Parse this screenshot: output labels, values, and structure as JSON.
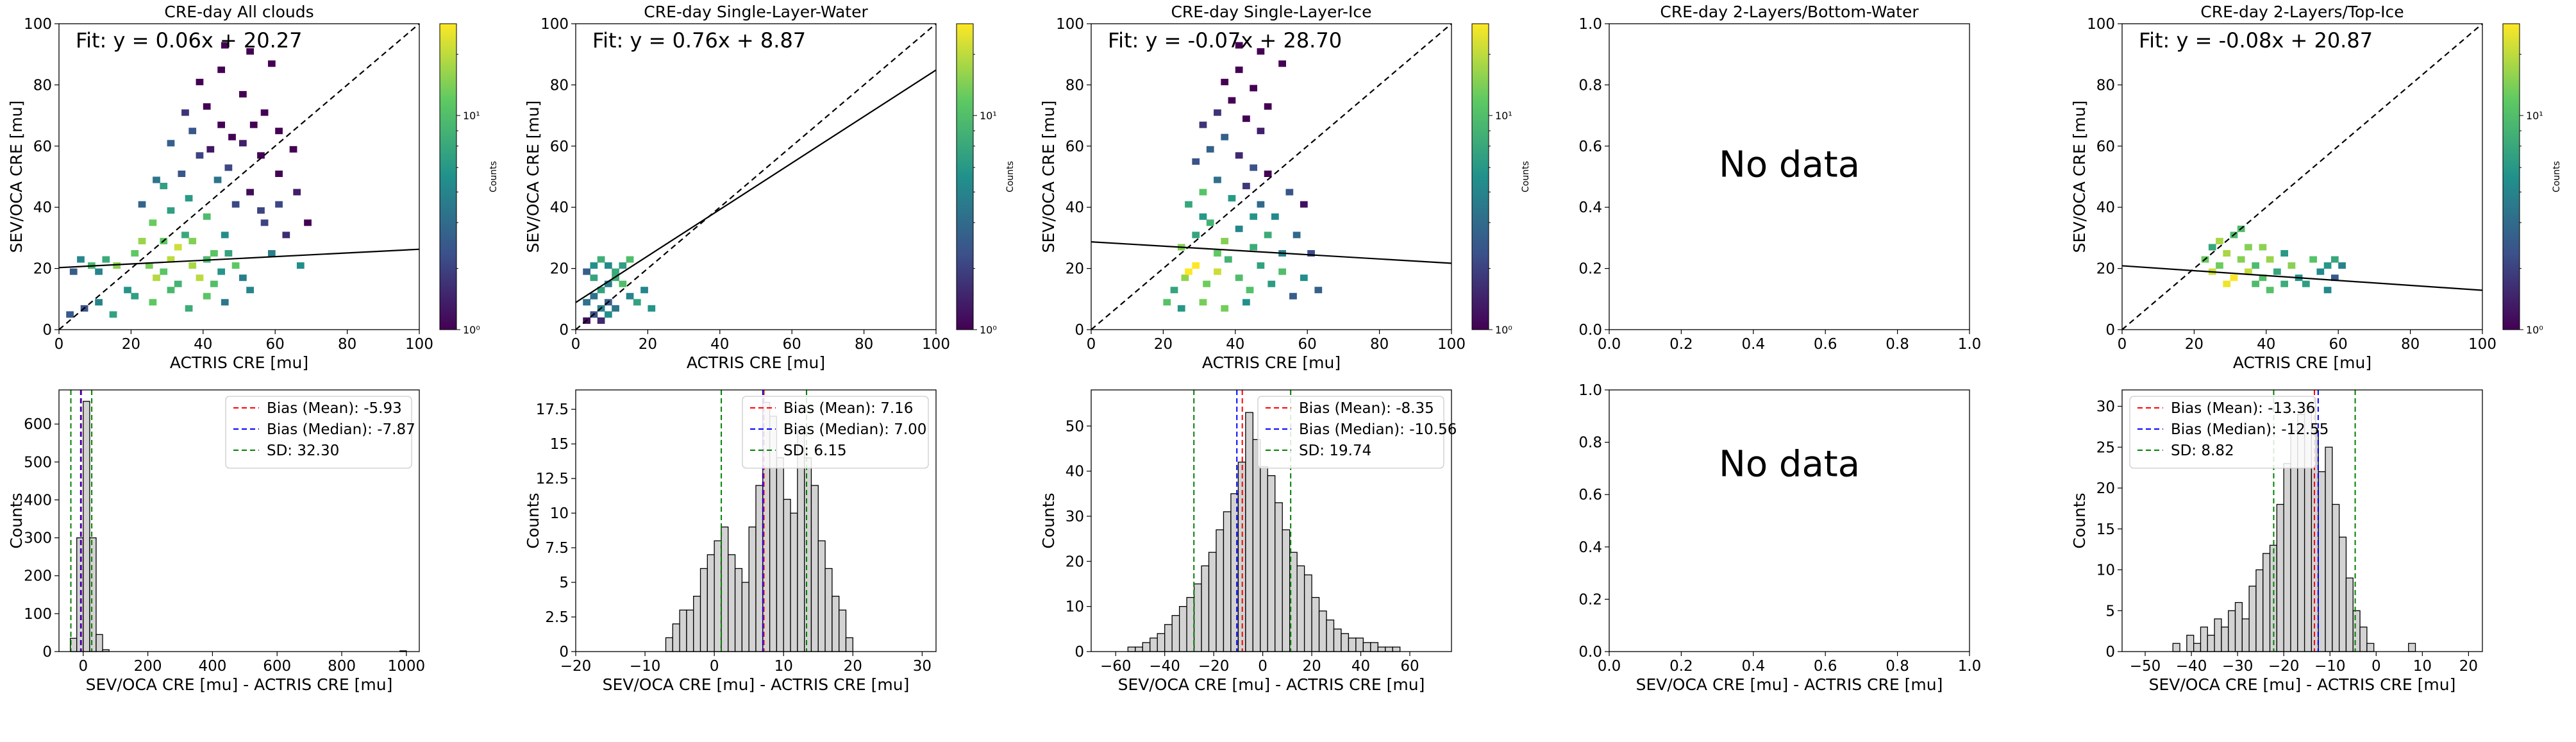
{
  "figure": {
    "no_data_label": "No data",
    "colorbar_label": "Counts",
    "colorbar_ticks": [
      "10⁰",
      "10¹"
    ],
    "colormap": [
      "#440154",
      "#3b528b",
      "#21918c",
      "#5ec962",
      "#fde725"
    ],
    "hist_fill": "#d3d3d3",
    "line_colors": {
      "mean": "#ff0000",
      "median": "#0000ff",
      "sd": "#008000"
    }
  },
  "chart_data": [
    {
      "type": "heatmap",
      "title": "CRE-day All clouds",
      "xlabel": "ACTRIS CRE [mu]",
      "ylabel": "SEV/OCA CRE [mu]",
      "xlim": [
        0,
        100
      ],
      "ylim": [
        0,
        100
      ],
      "xticks": [
        0,
        20,
        40,
        60,
        80,
        100
      ],
      "yticks": [
        0,
        20,
        40,
        60,
        80,
        100
      ],
      "fit_label": "Fit: y = 0.06x + 20.27",
      "fit": {
        "slope": 0.06,
        "intercept": 20.27
      },
      "one_to_one_line": true,
      "colorbar": "log",
      "cells": [
        [
          3,
          18
        ],
        [
          5,
          22
        ],
        [
          8,
          20
        ],
        [
          10,
          18
        ],
        [
          12,
          22
        ],
        [
          15,
          20
        ],
        [
          18,
          12
        ],
        [
          20,
          24
        ],
        [
          22,
          28
        ],
        [
          24,
          20
        ],
        [
          26,
          16
        ],
        [
          28,
          18
        ],
        [
          30,
          22
        ],
        [
          32,
          26
        ],
        [
          34,
          30
        ],
        [
          36,
          20
        ],
        [
          38,
          16
        ],
        [
          40,
          22
        ],
        [
          42,
          14
        ],
        [
          44,
          18
        ],
        [
          46,
          24
        ],
        [
          48,
          20
        ],
        [
          50,
          16
        ],
        [
          52,
          12
        ],
        [
          25,
          34
        ],
        [
          30,
          38
        ],
        [
          35,
          42
        ],
        [
          40,
          36
        ],
        [
          45,
          30
        ],
        [
          28,
          46
        ],
        [
          33,
          50
        ],
        [
          38,
          56
        ],
        [
          43,
          48
        ],
        [
          48,
          40
        ],
        [
          30,
          60
        ],
        [
          36,
          64
        ],
        [
          41,
          58
        ],
        [
          46,
          52
        ],
        [
          52,
          44
        ],
        [
          55,
          38
        ],
        [
          34,
          70
        ],
        [
          40,
          72
        ],
        [
          44,
          66
        ],
        [
          50,
          60
        ],
        [
          55,
          56
        ],
        [
          60,
          50
        ],
        [
          38,
          80
        ],
        [
          44,
          84
        ],
        [
          50,
          76
        ],
        [
          56,
          70
        ],
        [
          60,
          64
        ],
        [
          64,
          58
        ],
        [
          45,
          92
        ],
        [
          52,
          90
        ],
        [
          58,
          86
        ],
        [
          20,
          10
        ],
        [
          25,
          8
        ],
        [
          30,
          12
        ],
        [
          35,
          6
        ],
        [
          40,
          10
        ],
        [
          45,
          8
        ],
        [
          10,
          8
        ],
        [
          14,
          4
        ],
        [
          6,
          6
        ],
        [
          2,
          4
        ],
        [
          22,
          40
        ],
        [
          26,
          48
        ],
        [
          60,
          40
        ],
        [
          62,
          30
        ],
        [
          58,
          24
        ],
        [
          66,
          20
        ],
        [
          56,
          34
        ],
        [
          42,
          24
        ],
        [
          32,
          14
        ],
        [
          28,
          28
        ],
        [
          36,
          28
        ],
        [
          47,
          62
        ],
        [
          53,
          66
        ],
        [
          65,
          44
        ],
        [
          68,
          34
        ]
      ]
    },
    {
      "type": "heatmap",
      "title": "CRE-day Single-Layer-Water",
      "xlabel": "ACTRIS CRE [mu]",
      "ylabel": "SEV/OCA CRE [mu]",
      "xlim": [
        0,
        100
      ],
      "ylim": [
        0,
        100
      ],
      "xticks": [
        0,
        20,
        40,
        60,
        80,
        100
      ],
      "yticks": [
        0,
        20,
        40,
        60,
        80,
        100
      ],
      "fit_label": "Fit: y = 0.76x + 8.87",
      "fit": {
        "slope": 0.76,
        "intercept": 8.87
      },
      "one_to_one_line": true,
      "colorbar": "log",
      "cells": [
        [
          2,
          2
        ],
        [
          4,
          4
        ],
        [
          6,
          6
        ],
        [
          8,
          8
        ],
        [
          4,
          10
        ],
        [
          6,
          12
        ],
        [
          8,
          14
        ],
        [
          10,
          16
        ],
        [
          2,
          18
        ],
        [
          4,
          20
        ],
        [
          6,
          22
        ],
        [
          8,
          20
        ],
        [
          10,
          18
        ],
        [
          12,
          14
        ],
        [
          14,
          10
        ],
        [
          16,
          8
        ],
        [
          18,
          12
        ],
        [
          20,
          6
        ],
        [
          2,
          8
        ],
        [
          6,
          2
        ],
        [
          10,
          6
        ],
        [
          4,
          16
        ],
        [
          12,
          20
        ],
        [
          14,
          22
        ],
        [
          8,
          4
        ]
      ]
    },
    {
      "type": "heatmap",
      "title": "CRE-day Single-Layer-Ice",
      "xlabel": "ACTRIS CRE [mu]",
      "ylabel": "SEV/OCA CRE [mu]",
      "xlim": [
        0,
        100
      ],
      "ylim": [
        0,
        100
      ],
      "xticks": [
        0,
        20,
        40,
        60,
        80,
        100
      ],
      "yticks": [
        0,
        20,
        40,
        60,
        80,
        100
      ],
      "fit_label": "Fit: y = -0.07x + 28.70",
      "fit": {
        "slope": -0.07,
        "intercept": 28.7
      },
      "one_to_one_line": true,
      "colorbar": "log",
      "cells": [
        [
          22,
          12
        ],
        [
          25,
          16
        ],
        [
          28,
          20
        ],
        [
          31,
          14
        ],
        [
          34,
          18
        ],
        [
          37,
          22
        ],
        [
          40,
          16
        ],
        [
          43,
          12
        ],
        [
          46,
          20
        ],
        [
          49,
          14
        ],
        [
          52,
          18
        ],
        [
          55,
          10
        ],
        [
          24,
          26
        ],
        [
          28,
          30
        ],
        [
          32,
          34
        ],
        [
          36,
          28
        ],
        [
          40,
          32
        ],
        [
          44,
          26
        ],
        [
          48,
          30
        ],
        [
          52,
          24
        ],
        [
          26,
          40
        ],
        [
          30,
          44
        ],
        [
          34,
          48
        ],
        [
          38,
          42
        ],
        [
          42,
          46
        ],
        [
          46,
          40
        ],
        [
          50,
          36
        ],
        [
          28,
          54
        ],
        [
          32,
          58
        ],
        [
          36,
          62
        ],
        [
          40,
          56
        ],
        [
          44,
          52
        ],
        [
          48,
          50
        ],
        [
          30,
          66
        ],
        [
          34,
          70
        ],
        [
          38,
          74
        ],
        [
          42,
          68
        ],
        [
          46,
          64
        ],
        [
          36,
          80
        ],
        [
          40,
          84
        ],
        [
          44,
          78
        ],
        [
          48,
          72
        ],
        [
          40,
          92
        ],
        [
          46,
          90
        ],
        [
          52,
          86
        ],
        [
          20,
          8
        ],
        [
          24,
          6
        ],
        [
          30,
          8
        ],
        [
          36,
          6
        ],
        [
          42,
          8
        ],
        [
          58,
          16
        ],
        [
          60,
          24
        ],
        [
          56,
          30
        ],
        [
          54,
          44
        ],
        [
          58,
          40
        ],
        [
          62,
          12
        ],
        [
          26,
          18
        ],
        [
          34,
          24
        ],
        [
          44,
          36
        ],
        [
          30,
          36
        ]
      ]
    },
    {
      "type": "heatmap",
      "title": "CRE-day 2-Layers/Bottom-Water",
      "xlabel": "",
      "ylabel": "",
      "xlim": [
        0,
        1
      ],
      "ylim": [
        0,
        1
      ],
      "xticks": [
        0.0,
        0.2,
        0.4,
        0.6,
        0.8,
        1.0
      ],
      "yticks": [
        0.0,
        0.2,
        0.4,
        0.6,
        0.8,
        1.0
      ],
      "no_data": true
    },
    {
      "type": "heatmap",
      "title": "CRE-day 2-Layers/Top-Ice",
      "xlabel": "ACTRIS CRE [mu]",
      "ylabel": "SEV/OCA CRE [mu]",
      "xlim": [
        0,
        100
      ],
      "ylim": [
        0,
        100
      ],
      "xticks": [
        0,
        20,
        40,
        60,
        80,
        100
      ],
      "yticks": [
        0,
        20,
        40,
        60,
        80,
        100
      ],
      "fit_label": "Fit: y = -0.08x + 20.87",
      "fit": {
        "slope": -0.08,
        "intercept": 20.87
      },
      "one_to_one_line": true,
      "colorbar": "log",
      "cells": [
        [
          22,
          22
        ],
        [
          24,
          18
        ],
        [
          26,
          20
        ],
        [
          28,
          24
        ],
        [
          30,
          16
        ],
        [
          32,
          22
        ],
        [
          34,
          18
        ],
        [
          36,
          20
        ],
        [
          38,
          16
        ],
        [
          40,
          22
        ],
        [
          42,
          18
        ],
        [
          44,
          14
        ],
        [
          46,
          20
        ],
        [
          48,
          16
        ],
        [
          50,
          14
        ],
        [
          52,
          22
        ],
        [
          54,
          18
        ],
        [
          56,
          12
        ],
        [
          58,
          16
        ],
        [
          60,
          20
        ],
        [
          26,
          28
        ],
        [
          30,
          30
        ],
        [
          34,
          26
        ],
        [
          28,
          14
        ],
        [
          36,
          14
        ],
        [
          40,
          12
        ],
        [
          24,
          26
        ],
        [
          32,
          32
        ],
        [
          38,
          26
        ],
        [
          44,
          24
        ],
        [
          56,
          20
        ],
        [
          58,
          22
        ]
      ]
    },
    {
      "type": "bar",
      "xlabel": "SEV/OCA CRE [mu] - ACTRIS CRE [mu]",
      "ylabel": "Counts",
      "xlim": [
        -75,
        1040
      ],
      "ylim": [
        0,
        690
      ],
      "xticks": [
        0,
        200,
        400,
        600,
        800,
        1000
      ],
      "yticks": [
        0,
        100,
        200,
        300,
        400,
        500,
        600
      ],
      "bins": [
        [
          -40,
          -20,
          35
        ],
        [
          -20,
          0,
          300
        ],
        [
          0,
          20,
          660
        ],
        [
          20,
          40,
          300
        ],
        [
          40,
          60,
          45
        ],
        [
          60,
          80,
          5
        ],
        [
          980,
          1000,
          2
        ]
      ],
      "bias_mean": -5.93,
      "bias_median": -7.87,
      "sd": 32.3,
      "legend": [
        "Bias (Mean): -5.93",
        "Bias (Median): -7.87",
        "SD: 32.30"
      ],
      "legend_position": "upper right"
    },
    {
      "type": "bar",
      "xlabel": "SEV/OCA CRE [mu] - ACTRIS CRE [mu]",
      "ylabel": "Counts",
      "xlim": [
        -20,
        32
      ],
      "ylim": [
        0,
        18.9
      ],
      "xticks": [
        -20,
        -10,
        0,
        10,
        20,
        30
      ],
      "yticks": [
        0.0,
        2.5,
        5.0,
        7.5,
        10.0,
        12.5,
        15.0,
        17.5
      ],
      "bin_start": -7,
      "bin_width": 1,
      "counts": [
        1,
        2,
        3,
        3,
        4,
        6,
        7,
        8,
        9,
        7,
        6,
        5,
        9,
        12,
        18,
        17,
        14,
        11,
        10,
        16,
        14,
        12,
        8,
        6,
        4,
        3,
        1
      ],
      "bias_mean": 7.16,
      "bias_median": 7.0,
      "sd": 6.15,
      "legend": [
        "Bias (Mean): 7.16",
        "Bias (Median): 7.00",
        "SD: 6.15"
      ],
      "legend_position": "upper right"
    },
    {
      "type": "bar",
      "xlabel": "SEV/OCA CRE [mu] - ACTRIS CRE [mu]",
      "ylabel": "Counts",
      "xlim": [
        -70,
        77
      ],
      "ylim": [
        0,
        58
      ],
      "xticks": [
        -60,
        -40,
        -20,
        0,
        20,
        40,
        60
      ],
      "yticks": [
        0,
        10,
        20,
        30,
        40,
        50
      ],
      "bin_start": -55,
      "bin_width": 3,
      "counts": [
        1,
        1,
        2,
        3,
        4,
        6,
        8,
        10,
        12,
        15,
        19,
        22,
        27,
        31,
        35,
        42,
        53,
        47,
        41,
        39,
        33,
        27,
        22,
        19,
        17,
        12,
        9,
        7,
        5,
        4,
        3,
        3,
        2,
        2,
        1,
        1,
        1
      ],
      "bias_mean": -8.35,
      "bias_median": -10.56,
      "sd": 19.74,
      "legend": [
        "Bias (Mean): -8.35",
        "Bias (Median): -10.56",
        "SD: 19.74"
      ],
      "legend_position": "upper right"
    },
    {
      "type": "bar",
      "xlabel": "SEV/OCA CRE [mu] - ACTRIS CRE [mu]",
      "ylabel": "",
      "xlim": [
        0,
        1
      ],
      "ylim": [
        0,
        1
      ],
      "xticks": [
        0.0,
        0.2,
        0.4,
        0.6,
        0.8,
        1.0
      ],
      "yticks": [
        0.0,
        0.2,
        0.4,
        0.6,
        0.8,
        1.0
      ],
      "no_data": true
    },
    {
      "type": "bar",
      "xlabel": "SEV/OCA CRE [mu] - ACTRIS CRE [mu]",
      "ylabel": "Counts",
      "xlim": [
        -55,
        23
      ],
      "ylim": [
        0,
        32
      ],
      "xticks": [
        -50,
        -40,
        -30,
        -20,
        -10,
        0,
        10,
        20
      ],
      "yticks": [
        0,
        5,
        10,
        15,
        20,
        25,
        30
      ],
      "bin_start": -44,
      "bin_width": 1.5,
      "counts": [
        1,
        0,
        2,
        1,
        3,
        2,
        4,
        3,
        5,
        6,
        4,
        8,
        10,
        12,
        13,
        18,
        23,
        27,
        29,
        30,
        27,
        22,
        25,
        18,
        14,
        9,
        5,
        3,
        1,
        0,
        0,
        0,
        0,
        0,
        1
      ],
      "bias_mean": -13.36,
      "bias_median": -12.55,
      "sd": 8.82,
      "legend": [
        "Bias (Mean): -13.36",
        "Bias (Median): -12.55",
        "SD: 8.82"
      ],
      "legend_position": "upper left"
    }
  ]
}
